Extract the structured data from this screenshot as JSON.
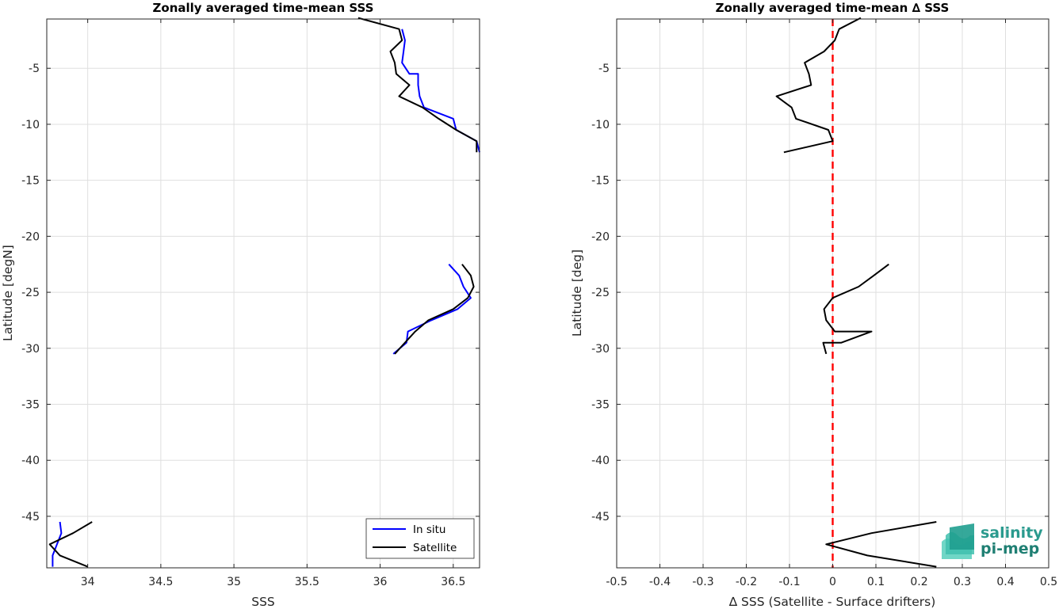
{
  "chart_data": [
    {
      "type": "line",
      "title": "Zonally averaged time-mean SSS",
      "xlabel": "SSS",
      "ylabel": "Latitude [degN]",
      "xlim": [
        33.72,
        36.68
      ],
      "ylim": [
        -49.6,
        -0.6
      ],
      "xticks": [
        "34",
        "34.5",
        "35",
        "35.5",
        "36",
        "36.5"
      ],
      "yticks": [
        "-5",
        "-10",
        "-15",
        "-20",
        "-25",
        "-30",
        "-35",
        "-40",
        "-45"
      ],
      "grid": true,
      "legend_position": "bottom-right",
      "series": [
        {
          "name": "In situ",
          "color": "#0000ff",
          "segments": [
            [
              [
                36.15,
                -1.5
              ],
              [
                36.17,
                -2.5
              ],
              [
                36.16,
                -3.5
              ],
              [
                36.15,
                -4.5
              ],
              [
                36.2,
                -5.5
              ],
              [
                36.26,
                -5.5
              ],
              [
                36.26,
                -6.5
              ],
              [
                36.27,
                -7.5
              ],
              [
                36.3,
                -8.5
              ],
              [
                36.5,
                -9.5
              ],
              [
                36.52,
                -10.5
              ],
              [
                36.66,
                -11.5
              ],
              [
                36.68,
                -12.5
              ]
            ],
            [
              [
                36.47,
                -22.5
              ],
              [
                36.54,
                -23.5
              ],
              [
                36.57,
                -24.5
              ],
              [
                36.62,
                -25.5
              ],
              [
                36.53,
                -26.5
              ],
              [
                36.35,
                -27.5
              ],
              [
                36.19,
                -28.5
              ],
              [
                36.18,
                -29.5
              ],
              [
                36.09,
                -30.5
              ]
            ],
            [
              [
                33.81,
                -45.5
              ],
              [
                33.82,
                -46.5
              ],
              [
                33.79,
                -47.5
              ],
              [
                33.76,
                -48.5
              ],
              [
                33.76,
                -49.5
              ]
            ]
          ]
        },
        {
          "name": "Satellite",
          "color": "#000000",
          "segments": [
            [
              [
                35.85,
                -0.5
              ],
              [
                36.13,
                -1.5
              ],
              [
                36.15,
                -2.5
              ],
              [
                36.07,
                -3.5
              ],
              [
                36.1,
                -4.5
              ],
              [
                36.11,
                -5.5
              ],
              [
                36.2,
                -6.5
              ],
              [
                36.13,
                -7.5
              ],
              [
                36.29,
                -8.5
              ],
              [
                36.4,
                -9.5
              ],
              [
                36.52,
                -10.5
              ],
              [
                36.66,
                -11.5
              ],
              [
                36.66,
                -12.5
              ]
            ],
            [
              [
                36.56,
                -22.5
              ],
              [
                36.62,
                -23.5
              ],
              [
                36.64,
                -24.5
              ],
              [
                36.6,
                -25.5
              ],
              [
                36.5,
                -26.5
              ],
              [
                36.33,
                -27.5
              ],
              [
                36.24,
                -28.5
              ],
              [
                36.17,
                -29.5
              ],
              [
                36.1,
                -30.5
              ]
            ],
            [
              [
                34.03,
                -45.5
              ],
              [
                33.9,
                -46.5
              ],
              [
                33.74,
                -47.5
              ],
              [
                33.81,
                -48.5
              ],
              [
                34.0,
                -49.5
              ]
            ]
          ]
        }
      ]
    },
    {
      "type": "line",
      "title": "Zonally averaged time-mean ∆ SSS",
      "xlabel": "∆ SSS (Satellite - Surface drifters)",
      "ylabel": "Latitude [deg]",
      "xlim": [
        -0.5,
        0.5
      ],
      "ylim": [
        -49.6,
        -0.6
      ],
      "xticks": [
        "-0.5",
        "-0.4",
        "-0.3",
        "-0.2",
        "-0.1",
        "0",
        "0.1",
        "0.2",
        "0.3",
        "0.4",
        "0.5"
      ],
      "yticks": [
        "-5",
        "-10",
        "-15",
        "-20",
        "-25",
        "-30",
        "-35",
        "-40",
        "-45"
      ],
      "grid": true,
      "reference_line": {
        "x": 0,
        "style": "dashed",
        "color": "#ff0000"
      },
      "series": [
        {
          "color": "#000000",
          "segments": [
            [
              [
                0.065,
                -0.5
              ],
              [
                0.015,
                -1.5
              ],
              [
                0.005,
                -2.5
              ],
              [
                -0.02,
                -3.5
              ],
              [
                -0.065,
                -4.5
              ],
              [
                -0.055,
                -5.5
              ],
              [
                -0.05,
                -6.5
              ],
              [
                -0.13,
                -7.5
              ],
              [
                -0.095,
                -8.5
              ],
              [
                -0.085,
                -9.5
              ],
              [
                -0.01,
                -10.5
              ],
              [
                0.0,
                -11.5
              ],
              [
                -0.113,
                -12.5
              ]
            ],
            [
              [
                0.13,
                -22.5
              ],
              [
                0.095,
                -23.5
              ],
              [
                0.06,
                -24.5
              ],
              [
                0.0,
                -25.5
              ],
              [
                -0.02,
                -26.5
              ],
              [
                -0.015,
                -27.5
              ],
              [
                0.005,
                -28.5
              ],
              [
                0.09,
                -28.5
              ],
              [
                0.02,
                -29.5
              ],
              [
                -0.022,
                -29.5
              ],
              [
                -0.015,
                -30.5
              ]
            ],
            [
              [
                0.24,
                -45.5
              ],
              [
                0.09,
                -46.5
              ],
              [
                -0.015,
                -47.5
              ],
              [
                0.08,
                -48.5
              ],
              [
                0.24,
                -49.5
              ]
            ]
          ]
        }
      ]
    }
  ],
  "logo": {
    "line1": "salinity",
    "line2": "pi-mep"
  }
}
